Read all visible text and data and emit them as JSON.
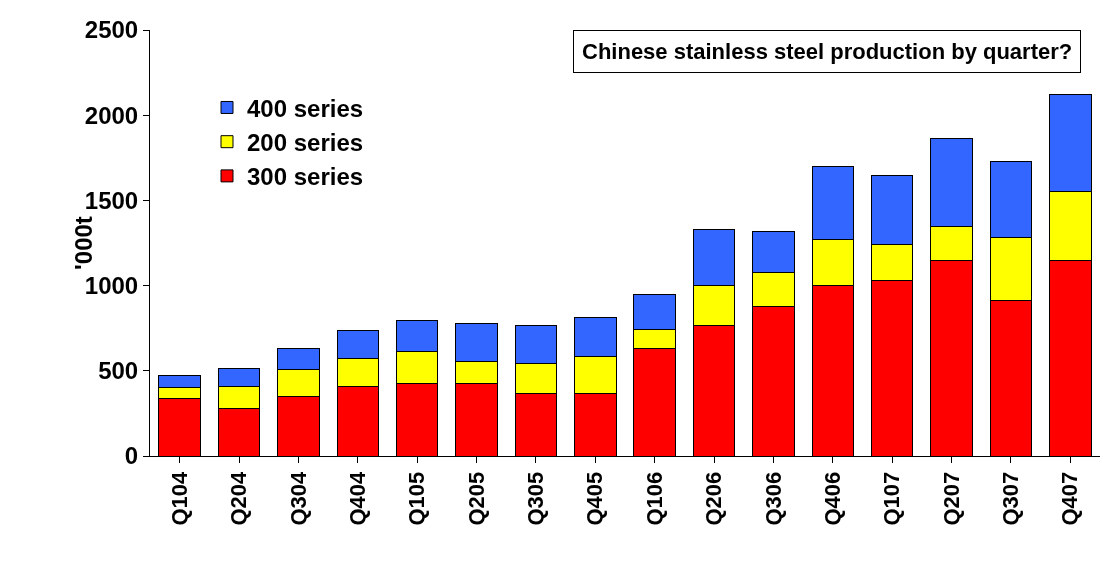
{
  "chart_data": {
    "type": "bar",
    "title": "Chinese stainless steel production by quarter?",
    "ylabel": "'000t",
    "categories": [
      "Q104",
      "Q204",
      "Q304",
      "Q404",
      "Q105",
      "Q205",
      "Q305",
      "Q405",
      "Q106",
      "Q206",
      "Q306",
      "Q406",
      "Q107",
      "Q207",
      "Q307",
      "Q407"
    ],
    "stacked": true,
    "series": [
      {
        "name": "300 series",
        "color": "#ff0000",
        "values": [
          335,
          280,
          350,
          410,
          425,
          425,
          365,
          365,
          630,
          765,
          880,
          1000,
          1030,
          1150,
          910,
          1150
        ]
      },
      {
        "name": "200 series",
        "color": "#ffff00",
        "values": [
          65,
          130,
          160,
          165,
          190,
          130,
          175,
          220,
          115,
          235,
          195,
          270,
          210,
          195,
          375,
          405
        ]
      },
      {
        "name": "400 series",
        "color": "#3366ff",
        "values": [
          75,
          105,
          120,
          160,
          180,
          225,
          225,
          225,
          200,
          330,
          240,
          430,
          405,
          520,
          445,
          565
        ]
      }
    ],
    "ylim": [
      0,
      2500
    ],
    "yticks": [
      0,
      500,
      1000,
      1500,
      2000,
      2500
    ],
    "grid": false,
    "legend": "top left"
  }
}
